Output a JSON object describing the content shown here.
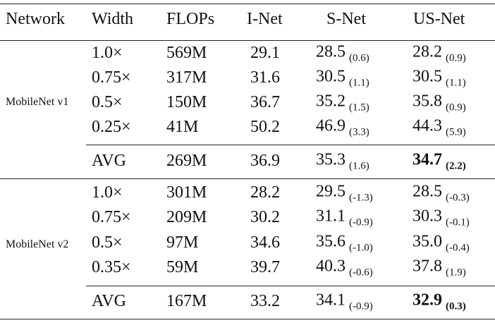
{
  "table": {
    "header": [
      "Network",
      "Width",
      "FLOPs",
      "I-Net",
      "S-Net",
      "US-Net"
    ],
    "groups": [
      {
        "network": "MobileNet v1",
        "rows": [
          [
            "1.0×",
            "569M",
            "29.1",
            [
              "28.5",
              "(0.6)"
            ],
            [
              "28.2",
              "(0.9)"
            ]
          ],
          [
            "0.75×",
            "317M",
            "31.6",
            [
              "30.5",
              "(1.1)"
            ],
            [
              "30.5",
              "(1.1)"
            ]
          ],
          [
            "0.5×",
            "150M",
            "36.7",
            [
              "35.2",
              "(1.5)"
            ],
            [
              "35.8",
              "(0.9)"
            ]
          ],
          [
            "0.25×",
            "41M",
            "50.2",
            [
              "46.9",
              "(3.3)"
            ],
            [
              "44.3",
              "(5.9)"
            ]
          ]
        ],
        "avg": [
          "AVG",
          "269M",
          "36.9",
          [
            "35.3",
            "(1.6)"
          ],
          [
            "34.7",
            "(2.2)"
          ]
        ]
      },
      {
        "network": "MobileNet v2",
        "rows": [
          [
            "1.0×",
            "301M",
            "28.2",
            [
              "29.5",
              "(-1.3)"
            ],
            [
              "28.5",
              "(-0.3)"
            ]
          ],
          [
            "0.75×",
            "209M",
            "30.2",
            [
              "31.1",
              "(-0.9)"
            ],
            [
              "30.3",
              "(-0.1)"
            ]
          ],
          [
            "0.5×",
            "97M",
            "34.6",
            [
              "35.6",
              "(-1.0)"
            ],
            [
              "35.0",
              "(-0.4)"
            ]
          ],
          [
            "0.35×",
            "59M",
            "39.7",
            [
              "40.3",
              "(-0.6)"
            ],
            [
              "37.8",
              "(1.9)"
            ]
          ]
        ],
        "avg": [
          "AVG",
          "167M",
          "33.2",
          [
            "34.1",
            "(-0.9)"
          ],
          [
            "32.9",
            "(0.3)"
          ]
        ]
      }
    ]
  }
}
